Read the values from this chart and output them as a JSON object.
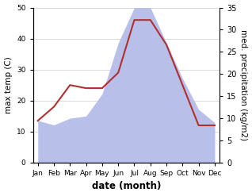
{
  "months": [
    "Jan",
    "Feb",
    "Mar",
    "Apr",
    "May",
    "Jun",
    "Jul",
    "Aug",
    "Sep",
    "Oct",
    "Nov",
    "Dec"
  ],
  "temp": [
    13.5,
    18,
    25,
    24,
    24,
    29,
    46,
    46,
    38,
    25,
    12,
    12
  ],
  "precip_right": [
    9.5,
    8.5,
    10,
    10.5,
    15.5,
    27,
    35,
    35,
    27,
    19,
    12,
    9
  ],
  "temp_color": "#b03030",
  "precip_fill_color": "#b8c0ea",
  "left_ylim": [
    0,
    50
  ],
  "right_ylim": [
    0,
    35
  ],
  "left_yticks": [
    0,
    10,
    20,
    30,
    40,
    50
  ],
  "right_yticks": [
    0,
    5,
    10,
    15,
    20,
    25,
    30,
    35
  ],
  "ylabel_left": "max temp (C)",
  "ylabel_right": "med. precipitation (kg/m2)",
  "xlabel": "date (month)",
  "temp_linewidth": 1.5,
  "fig_bg": "#ffffff"
}
